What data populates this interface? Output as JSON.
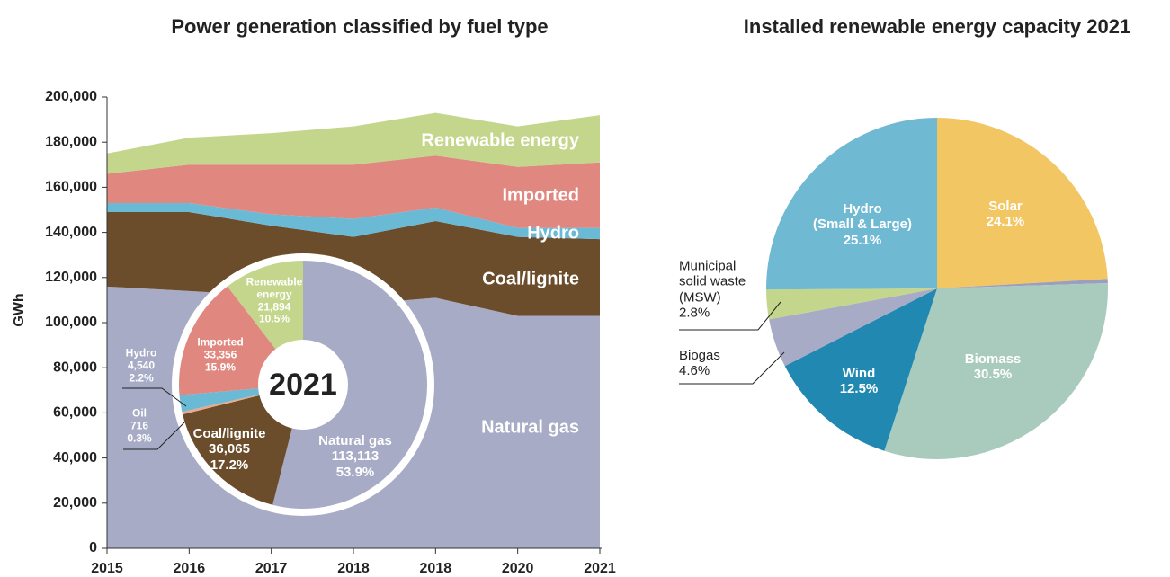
{
  "chart_data": [
    {
      "type": "area",
      "stacked": true,
      "title": "Power generation classified by fuel type",
      "y_label": "GWh",
      "categories": [
        "2015",
        "2016",
        "2017",
        "2018",
        "2018",
        "2020",
        "2021"
      ],
      "series": [
        {
          "name": "Natural gas",
          "color": "#a7abc5",
          "values": [
            116000,
            114000,
            112000,
            108000,
            111000,
            103000,
            103000
          ]
        },
        {
          "name": "Coal/lignite",
          "color": "#6b4c2b",
          "values": [
            33000,
            35000,
            31000,
            30000,
            34000,
            35000,
            34000
          ]
        },
        {
          "name": "Hydro",
          "color": "#6bbad5",
          "values": [
            4000,
            4000,
            5000,
            8000,
            6000,
            4000,
            5000
          ]
        },
        {
          "name": "Imported",
          "color": "#e0877f",
          "values": [
            13000,
            17000,
            22000,
            24000,
            23000,
            27000,
            29000
          ]
        },
        {
          "name": "Renewable energy",
          "color": "#c3d68b",
          "values": [
            9000,
            12000,
            14000,
            17000,
            19000,
            18000,
            21000
          ]
        }
      ],
      "ylim": [
        0,
        200000
      ],
      "yticks": [
        0,
        {
          "value": 20000,
          "label": "20,000"
        },
        {
          "value": 40000,
          "label": "40,000"
        },
        {
          "value": 60000,
          "label": "60,000"
        },
        {
          "value": 80000,
          "label": "80,000"
        },
        {
          "value": 100000,
          "label": "100,000"
        },
        {
          "value": 120000,
          "label": "120,000"
        },
        {
          "value": 140000,
          "label": "140,000"
        },
        {
          "value": 160000,
          "label": "160,000"
        },
        {
          "value": 180000,
          "label": "180,000"
        },
        {
          "value": 200000,
          "label": "200,000"
        }
      ]
    },
    {
      "type": "donut",
      "title": "2021",
      "categories": [
        "Natural gas",
        "Coal/lignite",
        "Oil",
        "Hydro",
        "Imported",
        "Renewable energy"
      ],
      "values": [
        113113,
        36065,
        716,
        4540,
        33356,
        21894
      ],
      "value_labels": [
        "113,113",
        "36,065",
        "716",
        "4,540",
        "33,356",
        "21,894"
      ],
      "percents": [
        53.9,
        17.2,
        0.3,
        2.2,
        15.9,
        10.5
      ],
      "percent_labels": [
        "53.9%",
        "17.2%",
        "0.3%",
        "2.2%",
        "15.9%",
        "10.5%"
      ],
      "colors": [
        "#a7abc5",
        "#6b4c2b",
        "#e8a98c",
        "#6bbad5",
        "#e0877f",
        "#c3d68b"
      ]
    },
    {
      "type": "pie",
      "title": "Installed renewable energy capacity 2021",
      "categories": [
        "Solar",
        null,
        "Biomass",
        "Wind",
        "Biogas",
        "Municipal solid waste (MSW)",
        "Hydro (Small & Large)"
      ],
      "values": [
        24.1,
        0.4,
        30.5,
        12.5,
        4.6,
        2.8,
        25.1
      ],
      "value_labels": [
        "24.1%",
        null,
        "30.5%",
        "12.5%",
        "4.6%",
        "2.8%",
        "25.1%"
      ],
      "colors": [
        "#f2c663",
        "#9a9fbf",
        "#a9cbbd",
        "#2189b1",
        "#a7abc5",
        "#c4d68c",
        "#6fb9d3"
      ]
    }
  ]
}
